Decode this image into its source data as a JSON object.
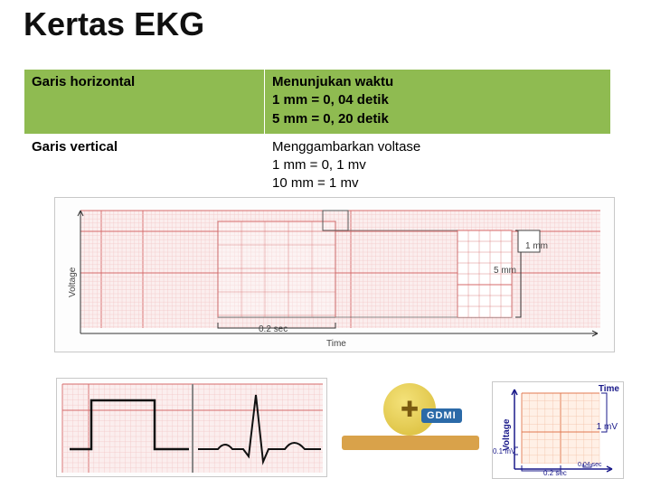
{
  "title": "Kertas EKG",
  "table": {
    "row1": {
      "left": "Garis horizontal",
      "right_line1": "Menunjukan waktu",
      "right_line2": "1 mm = 0, 04 detik",
      "right_line3": "5 mm = 0, 20 detik"
    },
    "row2": {
      "left": "Garis vertical",
      "right_line1": "Menggambarkan voltase",
      "right_line2": "1 mm = 0, 1 mv",
      "right_line3": "10 mm = 1 mv"
    }
  },
  "main_diagram": {
    "x_axis": "Time",
    "y_axis": "Voltage",
    "big_box_time": "0.2 sec",
    "callout_h": "5 mm",
    "callout_v": "1 mm",
    "grid_small_color": "#f2c6c6",
    "grid_big_color": "#d66a6a",
    "paper_bg": "#fbeeee"
  },
  "bottom_right": {
    "x_axis": "Time",
    "y_axis": "Voltage",
    "big_v": "1 mV",
    "small_v": "0.1 mV",
    "big_t": "0.2 sec",
    "small_t": "0.04 sec",
    "grid_color": "#e07850",
    "paper_bg": "#fff0e6"
  },
  "logo_text": "GDMI"
}
